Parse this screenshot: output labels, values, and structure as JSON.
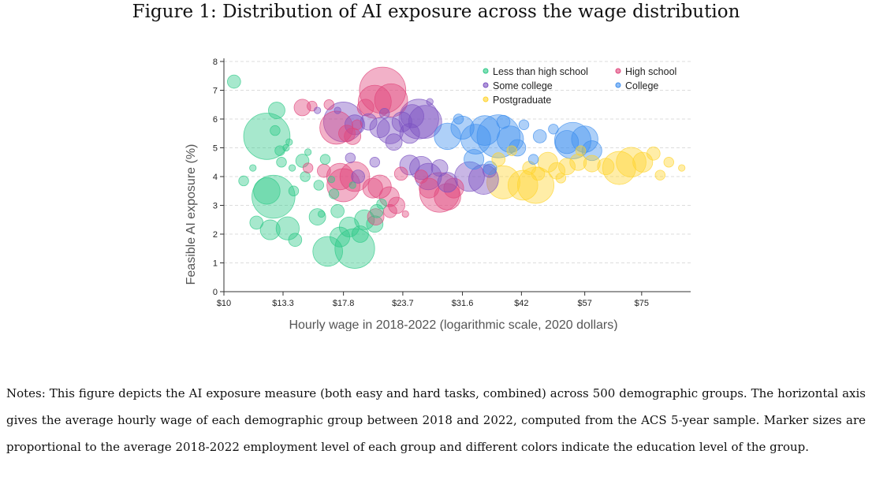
{
  "figure": {
    "title": "Figure 1: Distribution of AI exposure across the wage distribution"
  },
  "notes": {
    "text": "Notes: This figure depicts the AI exposure measure (both easy and hard tasks, combined) across 500 demographic groups. The horizontal axis gives the average hourly wage of each demographic group between 2018 and 2022, computed from the ACS 5-year sample. Marker sizes are proportional to the average 2018-2022 employment level of each group and different colors indicate the education level of the group."
  },
  "chart_data": {
    "type": "scatter",
    "title": "",
    "xlabel": "Hourly wage in 2018-2022 (logarithmic scale, 2020 dollars)",
    "ylabel": "Feasible AI exposure (%)",
    "xscale": "log",
    "xlim": [
      10,
      95
    ],
    "ylim": [
      0,
      8
    ],
    "xticks": [
      10,
      13.3,
      17.8,
      23.7,
      31.6,
      42,
      57,
      75
    ],
    "xtick_labels": [
      "$10",
      "$13.3",
      "$17.8",
      "$23.7",
      "$31.6",
      "$42",
      "$57",
      "$75"
    ],
    "yticks": [
      0,
      1,
      2,
      3,
      4,
      5,
      6,
      7,
      8
    ],
    "ytick_labels": [
      "0",
      "1",
      "2",
      "3",
      "4",
      "5",
      "6",
      "7",
      "8"
    ],
    "grid": "horizontal dashed",
    "legend_position": "top-right",
    "size_meaning": "employment level",
    "colors": {
      "Less than high school": "#2ec987",
      "High school": "#e0457b",
      "Some college": "#7b52c1",
      "College": "#3f8fee",
      "Postgraduate": "#ffd42e"
    },
    "legend": [
      {
        "name": "Less than high school"
      },
      {
        "name": "High school"
      },
      {
        "name": "Some college"
      },
      {
        "name": "College"
      },
      {
        "name": "Postgraduate"
      }
    ],
    "series": [
      {
        "name": "Less than high school",
        "points": [
          [
            10.5,
            7.3,
            4
          ],
          [
            12.9,
            6.3,
            5
          ],
          [
            12.3,
            5.4,
            14
          ],
          [
            12.8,
            5.6,
            3
          ],
          [
            13.5,
            5.0,
            2
          ],
          [
            13.1,
            4.9,
            3
          ],
          [
            11.0,
            3.85,
            3
          ],
          [
            12.3,
            3.5,
            8
          ],
          [
            12.7,
            3.3,
            13
          ],
          [
            14.0,
            3.5,
            3
          ],
          [
            11.7,
            2.4,
            4
          ],
          [
            12.5,
            2.15,
            6
          ],
          [
            13.6,
            2.2,
            7
          ],
          [
            14.1,
            1.8,
            4
          ],
          [
            13.2,
            4.5,
            3
          ],
          [
            14.6,
            4.55,
            4
          ],
          [
            14.8,
            4.0,
            3
          ],
          [
            15.8,
            3.7,
            3
          ],
          [
            15.7,
            2.6,
            5
          ],
          [
            16.0,
            2.7,
            2
          ],
          [
            16.5,
            1.4,
            9
          ],
          [
            18.8,
            1.5,
            12
          ],
          [
            17.5,
            1.9,
            6
          ],
          [
            18.3,
            2.25,
            6
          ],
          [
            19.7,
            2.5,
            6
          ],
          [
            20.7,
            2.35,
            5
          ],
          [
            20.9,
            2.8,
            4
          ],
          [
            21.4,
            3.05,
            3
          ],
          [
            17.0,
            3.4,
            3
          ],
          [
            18.6,
            3.7,
            2
          ],
          [
            16.3,
            4.6,
            3
          ],
          [
            17.3,
            2.8,
            4
          ],
          [
            19.3,
            2.0,
            5
          ],
          [
            15.0,
            4.85,
            2
          ],
          [
            13.9,
            4.3,
            2
          ],
          [
            16.8,
            3.9,
            2
          ],
          [
            11.5,
            4.3,
            2
          ],
          [
            13.7,
            5.2,
            2
          ]
        ]
      },
      {
        "name": "High school",
        "points": [
          [
            14.6,
            6.4,
            5
          ],
          [
            15.3,
            6.45,
            3
          ],
          [
            16.6,
            6.5,
            3
          ],
          [
            17.2,
            5.7,
            10
          ],
          [
            18.1,
            5.5,
            5
          ],
          [
            18.6,
            5.4,
            5
          ],
          [
            20.7,
            6.6,
            10
          ],
          [
            21.5,
            7.0,
            14
          ],
          [
            22.4,
            6.65,
            10
          ],
          [
            19.8,
            6.4,
            5
          ],
          [
            17.5,
            4.0,
            8
          ],
          [
            18.8,
            4.0,
            9
          ],
          [
            17.8,
            3.7,
            10
          ],
          [
            20.5,
            3.6,
            6
          ],
          [
            21.2,
            3.65,
            7
          ],
          [
            22.2,
            3.3,
            6
          ],
          [
            23.0,
            3.0,
            5
          ],
          [
            25.9,
            4.0,
            4
          ],
          [
            26.9,
            3.6,
            6
          ],
          [
            28.3,
            3.45,
            12
          ],
          [
            29.4,
            3.3,
            8
          ],
          [
            30.3,
            3.6,
            6
          ],
          [
            20.8,
            2.6,
            5
          ],
          [
            22.3,
            2.8,
            4
          ],
          [
            16.2,
            4.2,
            4
          ],
          [
            15.0,
            4.3,
            3
          ],
          [
            24.0,
            2.7,
            2
          ],
          [
            19.0,
            5.8,
            3
          ],
          [
            23.5,
            4.1,
            4
          ]
        ]
      },
      {
        "name": "Some college",
        "points": [
          [
            15.7,
            6.3,
            2
          ],
          [
            17.3,
            6.3,
            2
          ],
          [
            17.8,
            5.9,
            12
          ],
          [
            18.8,
            5.8,
            6
          ],
          [
            20.1,
            5.9,
            5
          ],
          [
            21.2,
            5.7,
            6
          ],
          [
            22.3,
            5.6,
            8
          ],
          [
            23.6,
            5.9,
            6
          ],
          [
            24.8,
            6.1,
            7
          ],
          [
            25.6,
            6.0,
            12
          ],
          [
            26.4,
            5.9,
            10
          ],
          [
            22.7,
            5.2,
            5
          ],
          [
            24.5,
            5.5,
            6
          ],
          [
            19.1,
            4.0,
            4
          ],
          [
            24.5,
            4.4,
            6
          ],
          [
            25.9,
            4.3,
            7
          ],
          [
            26.8,
            4.0,
            8
          ],
          [
            28.3,
            4.3,
            5
          ],
          [
            29.4,
            3.8,
            6
          ],
          [
            32.7,
            4.0,
            9
          ],
          [
            35.0,
            3.9,
            9
          ],
          [
            36.0,
            4.2,
            4
          ],
          [
            20.7,
            4.5,
            3
          ],
          [
            21.7,
            6.2,
            3
          ],
          [
            18.4,
            4.65,
            3
          ],
          [
            27.0,
            6.6,
            2
          ]
        ]
      },
      {
        "name": "College",
        "points": [
          [
            29.4,
            5.4,
            8
          ],
          [
            31.6,
            5.7,
            7
          ],
          [
            33.7,
            5.3,
            9
          ],
          [
            35.2,
            5.6,
            9
          ],
          [
            37.6,
            5.4,
            13
          ],
          [
            39.8,
            5.3,
            8
          ],
          [
            41.2,
            5.0,
            5
          ],
          [
            45.9,
            5.4,
            4
          ],
          [
            52.3,
            5.2,
            7
          ],
          [
            53.8,
            5.25,
            11
          ],
          [
            57.0,
            5.3,
            8
          ],
          [
            59.0,
            4.9,
            6
          ],
          [
            33.4,
            4.6,
            6
          ],
          [
            36.1,
            4.3,
            4
          ],
          [
            42.5,
            5.8,
            3
          ],
          [
            49.0,
            5.65,
            3
          ],
          [
            31.0,
            6.0,
            3
          ],
          [
            44.5,
            4.6,
            3
          ],
          [
            38.5,
            5.9,
            4
          ]
        ]
      },
      {
        "name": "Postgraduate",
        "points": [
          [
            38.5,
            3.8,
            10
          ],
          [
            42.3,
            3.7,
            9
          ],
          [
            45.0,
            3.7,
            11
          ],
          [
            47.7,
            4.5,
            6
          ],
          [
            49.8,
            4.2,
            5
          ],
          [
            52.3,
            4.35,
            5
          ],
          [
            55.2,
            4.5,
            5
          ],
          [
            59.0,
            4.45,
            5
          ],
          [
            63.1,
            4.35,
            5
          ],
          [
            67.3,
            4.3,
            10
          ],
          [
            71.3,
            4.5,
            9
          ],
          [
            75.4,
            4.5,
            6
          ],
          [
            79.4,
            4.8,
            4
          ],
          [
            85.5,
            4.5,
            3
          ],
          [
            37.6,
            4.6,
            4
          ],
          [
            40.1,
            4.9,
            3
          ],
          [
            45.5,
            4.1,
            4
          ],
          [
            50.8,
            3.95,
            3
          ],
          [
            55.9,
            4.9,
            3
          ],
          [
            91.0,
            4.3,
            2
          ],
          [
            82.0,
            4.05,
            3
          ],
          [
            43.6,
            4.3,
            4
          ]
        ]
      }
    ]
  }
}
